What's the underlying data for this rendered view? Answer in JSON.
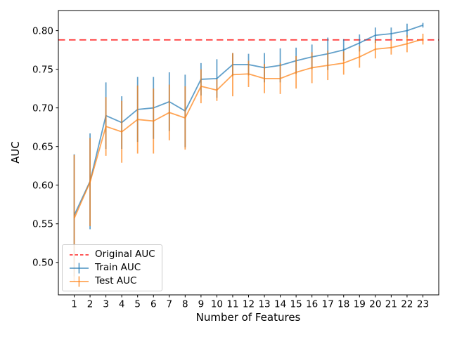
{
  "chart_data": {
    "type": "line",
    "title": "",
    "xlabel": "Number of Features",
    "ylabel": "AUC",
    "x": [
      1,
      2,
      3,
      4,
      5,
      6,
      7,
      8,
      9,
      10,
      11,
      12,
      13,
      14,
      15,
      16,
      17,
      18,
      19,
      20,
      21,
      22,
      23
    ],
    "xticks": [
      1,
      2,
      3,
      4,
      5,
      6,
      7,
      8,
      9,
      10,
      11,
      12,
      13,
      14,
      15,
      16,
      17,
      18,
      19,
      20,
      21,
      22,
      23
    ],
    "yticks": [
      0.5,
      0.55,
      0.6,
      0.65,
      0.7,
      0.75,
      0.8
    ],
    "xlim": [
      0,
      24
    ],
    "ylim": [
      0.458,
      0.826
    ],
    "grid": false,
    "legend_position": "lower left",
    "axis_color": "#000000",
    "series": [
      {
        "name": "Original AUC",
        "type": "hline",
        "y": 0.788,
        "color": "#ff0000",
        "alpha": 0.75,
        "linestyle": "dashed"
      },
      {
        "name": "Train AUC",
        "type": "errorbar-line",
        "color": "#1f77b4",
        "alpha": 0.7,
        "values": [
          0.561,
          0.605,
          0.69,
          0.681,
          0.698,
          0.7,
          0.708,
          0.696,
          0.737,
          0.738,
          0.756,
          0.756,
          0.752,
          0.755,
          0.761,
          0.766,
          0.77,
          0.775,
          0.784,
          0.794,
          0.796,
          0.8,
          0.807
        ],
        "errors": [
          0.079,
          0.062,
          0.043,
          0.034,
          0.042,
          0.04,
          0.038,
          0.047,
          0.021,
          0.025,
          0.015,
          0.014,
          0.019,
          0.022,
          0.017,
          0.016,
          0.021,
          0.014,
          0.011,
          0.01,
          0.008,
          0.009,
          0.003
        ]
      },
      {
        "name": "Test AUC",
        "type": "errorbar-line",
        "color": "#ff7f0e",
        "alpha": 0.7,
        "values": [
          0.557,
          0.604,
          0.676,
          0.669,
          0.685,
          0.683,
          0.694,
          0.687,
          0.728,
          0.723,
          0.743,
          0.744,
          0.738,
          0.738,
          0.746,
          0.752,
          0.755,
          0.758,
          0.766,
          0.776,
          0.778,
          0.783,
          0.789
        ],
        "errors": [
          0.082,
          0.057,
          0.038,
          0.04,
          0.044,
          0.042,
          0.036,
          0.041,
          0.022,
          0.014,
          0.028,
          0.017,
          0.019,
          0.02,
          0.021,
          0.02,
          0.019,
          0.015,
          0.014,
          0.012,
          0.009,
          0.011,
          0.007
        ]
      }
    ]
  }
}
